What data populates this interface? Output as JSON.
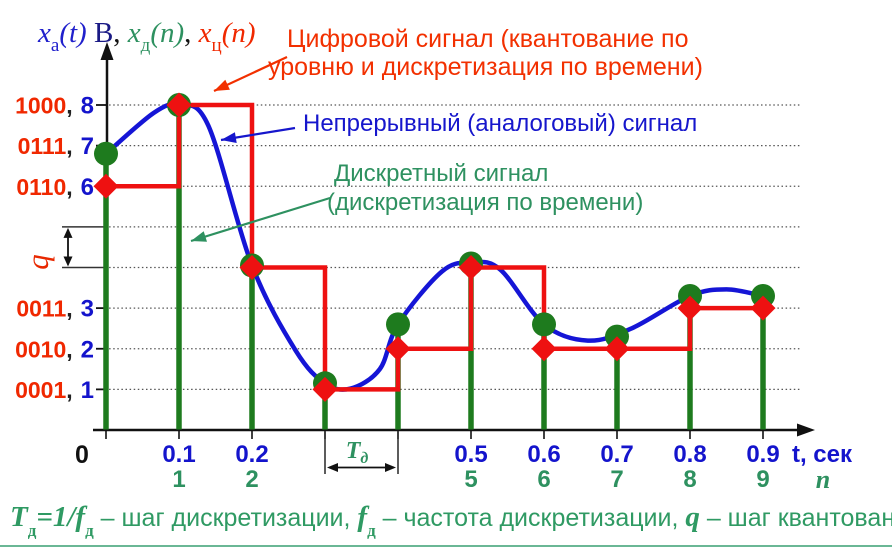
{
  "title_formula": {
    "xa_base": "x",
    "xa_sub": "а",
    "xa_tail": "(t)",
    "unit": " В",
    "comma1": ", ",
    "xd_base": "x",
    "xd_sub": "д",
    "xd_tail": "(n)",
    "comma2": ", ",
    "xc_base": "x",
    "xc_sub": "ц",
    "xc_tail": "(n)"
  },
  "annotations": {
    "digital_line1": "Цифровой сигнал (квантование по",
    "digital_line2": "уровню и дискретизация по времени)",
    "analog": "Непрерывный (аналоговый) сигнал",
    "discrete_line1": "Дискретный сигнал",
    "discrete_line2": "(дискретизация по времени)"
  },
  "footer_formula": {
    "t_base": "T",
    "t_sub": "д",
    "eq": "=1/",
    "f1_base": "f",
    "f1_sub": "д",
    "seg1": " – шаг дискретизации, ",
    "f2_base": "f",
    "f2_sub": "д",
    "seg2": " – ",
    "seg3": "частота дискретизации, ",
    "q": "q",
    "seg4": " – шаг квантования"
  },
  "chart_data": {
    "type": "line",
    "description": "Analog signal curve with time-sampled stem plot and level-quantized step plot",
    "x_time": [
      0,
      0.1,
      0.2,
      0.3,
      0.4,
      0.5,
      0.6,
      0.7,
      0.8,
      0.9
    ],
    "sample_n": [
      0,
      1,
      2,
      3,
      4,
      5,
      6,
      7,
      8,
      9
    ],
    "analog_values": [
      6.8,
      8.0,
      4.05,
      1.15,
      2.6,
      4.1,
      2.6,
      2.3,
      3.3,
      3.3
    ],
    "quantized_values": [
      6,
      8,
      4,
      1,
      2,
      4,
      2,
      2,
      3,
      3
    ],
    "curve_points": [
      [
        0,
        6.8
      ],
      [
        0.065,
        7.8
      ],
      [
        0.1,
        8.0
      ],
      [
        0.14,
        7.5
      ],
      [
        0.2,
        4.05
      ],
      [
        0.26,
        1.95
      ],
      [
        0.3,
        1.15
      ],
      [
        0.335,
        1.02
      ],
      [
        0.375,
        1.5
      ],
      [
        0.4,
        2.6
      ],
      [
        0.46,
        3.9
      ],
      [
        0.5,
        4.12
      ],
      [
        0.54,
        3.95
      ],
      [
        0.6,
        2.6
      ],
      [
        0.66,
        2.2
      ],
      [
        0.72,
        2.5
      ],
      [
        0.8,
        3.3
      ],
      [
        0.85,
        3.46
      ],
      [
        0.9,
        3.3
      ]
    ],
    "y_axis_labels": [
      {
        "code": "1000",
        "value": "8",
        "level": 8
      },
      {
        "code": "0111",
        "value": "7",
        "level": 7
      },
      {
        "code": "0110",
        "value": "6",
        "level": 6
      },
      {
        "code": "0011",
        "value": "3",
        "level": 3
      },
      {
        "code": "0010",
        "value": "2",
        "level": 2
      },
      {
        "code": "0001",
        "value": "1",
        "level": 1
      }
    ],
    "x_axis_ticks": [
      {
        "t": 0,
        "time_label": "",
        "n_label": ""
      },
      {
        "t": 0.1,
        "time_label": "0.1",
        "n_label": "1"
      },
      {
        "t": 0.2,
        "time_label": "0.2",
        "n_label": "2"
      },
      {
        "t": 0.3,
        "time_label": "",
        "n_label": ""
      },
      {
        "t": 0.4,
        "time_label": "",
        "n_label": ""
      },
      {
        "t": 0.5,
        "time_label": "0.5",
        "n_label": "5"
      },
      {
        "t": 0.6,
        "time_label": "0.6",
        "n_label": "6"
      },
      {
        "t": 0.7,
        "time_label": "0.7",
        "n_label": "7"
      },
      {
        "t": 0.8,
        "time_label": "0.8",
        "n_label": "8"
      },
      {
        "t": 0.9,
        "time_label": "0.9",
        "n_label": "9"
      }
    ],
    "origin_label": "0",
    "x_axis_title": "t, сек",
    "n_axis_title": "n",
    "q_label": "q",
    "td_label_base": "T",
    "td_label_sub": "д",
    "grid_levels": [
      1,
      2,
      3,
      4,
      5,
      6,
      7,
      8
    ],
    "ylim": [
      0,
      8.8
    ],
    "xlim": [
      0,
      0.97
    ],
    "legend_position": "arrow-annotations",
    "colors": {
      "analog_curve": "#1515d6",
      "digital_step": "#ee1111",
      "discrete_stem": "#1e7b1e",
      "text_red": "#f02800",
      "text_blue": "#1414cc",
      "text_green": "#2e9160",
      "axis": "#111111",
      "grid": "#555555"
    }
  }
}
